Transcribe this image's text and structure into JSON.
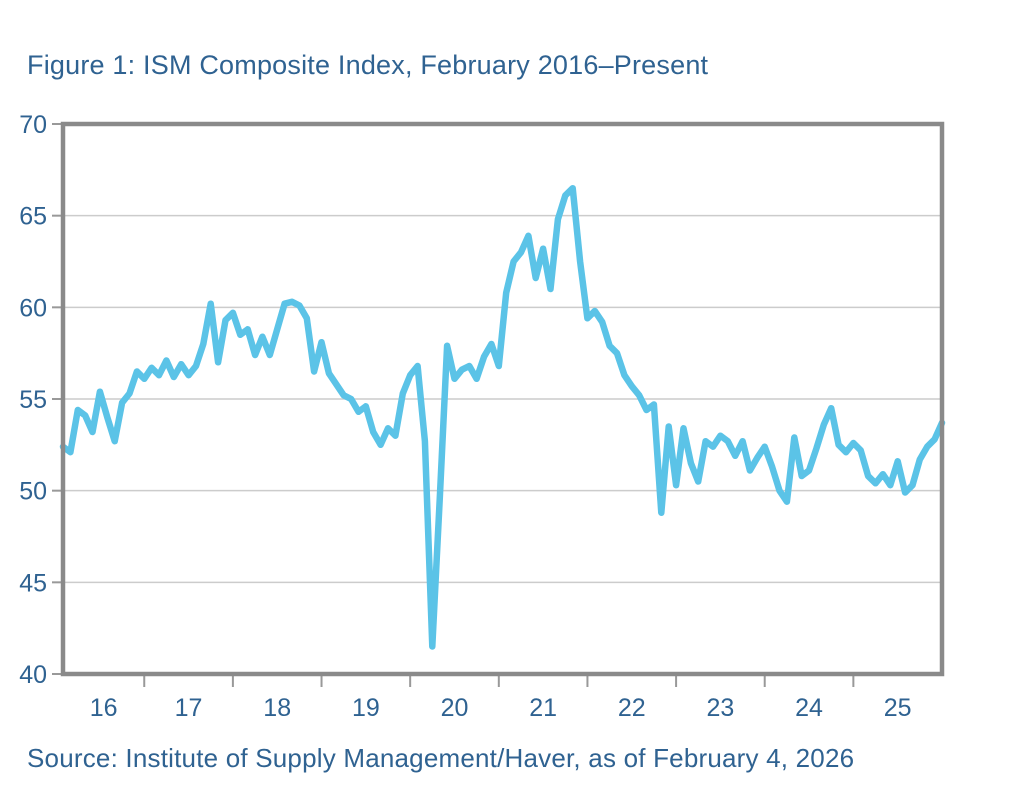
{
  "figure": {
    "title": "Figure 1: ISM Composite Index, February 2016–Present",
    "source": "Source: Institute of Supply Management/Haver, as of February 4, 2026"
  },
  "colors": {
    "text": "#2f6291",
    "line": "#5bc3e7",
    "grid": "#cccccc",
    "frame": "#8a8a8a",
    "tick": "#999999",
    "background": "#ffffff"
  },
  "chart_data": {
    "type": "line",
    "title": "Figure 1: ISM Composite Index, February 2016–Present",
    "source_note": "Source: Institute of Supply Management/Haver, as of February 4, 2026",
    "frequency": "monthly",
    "x_start": "2016-02",
    "x_end": "2026-01",
    "x_tick_labels": [
      "16",
      "17",
      "18",
      "19",
      "20",
      "21",
      "22",
      "23",
      "24",
      "25"
    ],
    "y_ticks": [
      40,
      45,
      50,
      55,
      60,
      65,
      70
    ],
    "ylim": [
      40,
      70
    ],
    "grid": "horizontal",
    "legend": "none",
    "series": [
      {
        "name": "ISM Composite Index",
        "values": [
          52.4,
          52.1,
          54.4,
          54.1,
          53.2,
          55.4,
          54.0,
          52.7,
          54.8,
          55.3,
          56.5,
          56.1,
          56.7,
          56.3,
          57.1,
          56.2,
          56.9,
          56.3,
          56.8,
          58.0,
          60.2,
          57.0,
          59.3,
          59.7,
          58.5,
          58.8,
          57.4,
          58.4,
          57.4,
          58.8,
          60.2,
          60.3,
          60.1,
          59.4,
          56.5,
          58.1,
          56.4,
          55.8,
          55.2,
          55.0,
          54.3,
          54.6,
          53.2,
          52.5,
          53.4,
          53.0,
          55.3,
          56.3,
          56.8,
          52.7,
          41.5,
          49.5,
          57.9,
          56.1,
          56.6,
          56.8,
          56.1,
          57.3,
          58.0,
          56.8,
          60.8,
          62.5,
          63.0,
          63.9,
          61.6,
          63.2,
          61.0,
          64.8,
          66.1,
          66.5,
          62.5,
          59.4,
          59.8,
          59.2,
          57.9,
          57.5,
          56.3,
          55.7,
          55.2,
          54.4,
          54.7,
          48.8,
          53.5,
          50.3,
          53.4,
          51.5,
          50.5,
          52.7,
          52.4,
          53.0,
          52.7,
          51.9,
          52.7,
          51.1,
          51.8,
          52.4,
          51.3,
          50.0,
          49.4,
          52.9,
          50.8,
          51.1,
          52.3,
          53.6,
          54.5,
          52.5,
          52.1,
          52.6,
          52.2,
          50.8,
          50.4,
          50.9,
          50.3,
          51.6,
          49.9,
          50.3,
          51.7,
          52.4,
          52.8,
          53.7
        ]
      }
    ]
  }
}
